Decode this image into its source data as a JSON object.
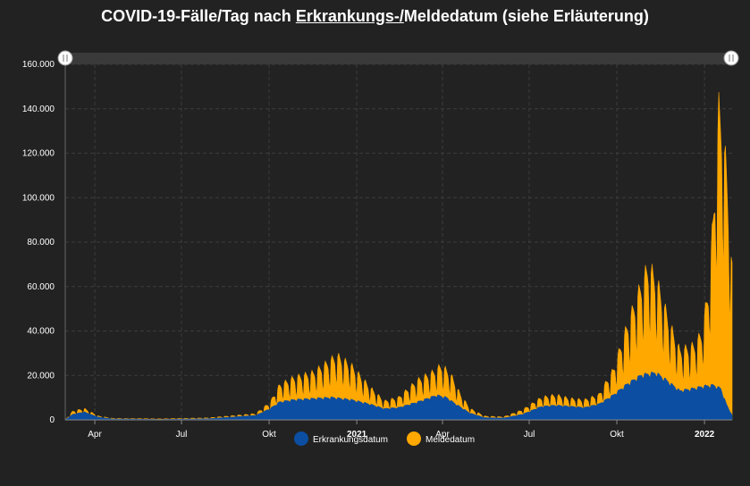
{
  "chart_data": {
    "type": "area",
    "title_parts": [
      "COVID-19-Fälle/Tag nach ",
      "Erkrankungs-/",
      "Meldedatum (siehe Erläuterung)"
    ],
    "ylim": [
      0,
      160000
    ],
    "y_ticks": [
      "0",
      "20.000",
      "40.000",
      "60.000",
      "80.000",
      "100.000",
      "120.000",
      "140.000",
      "160.000"
    ],
    "y_tick_values": [
      0,
      20000,
      40000,
      60000,
      80000,
      100000,
      120000,
      140000,
      160000
    ],
    "x_range_days": [
      0,
      700
    ],
    "x_ticks": [
      {
        "label": "Apr",
        "day": 31,
        "bold": false
      },
      {
        "label": "Jul",
        "day": 122,
        "bold": false
      },
      {
        "label": "Okt",
        "day": 214,
        "bold": false
      },
      {
        "label": "2021",
        "day": 306,
        "bold": true
      },
      {
        "label": "Apr",
        "day": 396,
        "bold": false
      },
      {
        "label": "Jul",
        "day": 487,
        "bold": false
      },
      {
        "label": "Okt",
        "day": 579,
        "bold": false
      },
      {
        "label": "2022",
        "day": 671,
        "bold": true
      }
    ],
    "series": [
      {
        "name": "Erkrankungsdatum",
        "color": "#0b4ea2",
        "keypoints": [
          [
            0,
            0
          ],
          [
            8,
            2500
          ],
          [
            20,
            3500
          ],
          [
            35,
            1200
          ],
          [
            50,
            400
          ],
          [
            100,
            200
          ],
          [
            150,
            500
          ],
          [
            200,
            2000
          ],
          [
            215,
            5000
          ],
          [
            225,
            8000
          ],
          [
            240,
            9000
          ],
          [
            260,
            9500
          ],
          [
            280,
            10000
          ],
          [
            300,
            9000
          ],
          [
            320,
            7000
          ],
          [
            335,
            5000
          ],
          [
            350,
            5500
          ],
          [
            370,
            8000
          ],
          [
            390,
            11000
          ],
          [
            400,
            10000
          ],
          [
            410,
            7000
          ],
          [
            425,
            3000
          ],
          [
            440,
            1000
          ],
          [
            460,
            800
          ],
          [
            480,
            2500
          ],
          [
            500,
            6000
          ],
          [
            515,
            6500
          ],
          [
            530,
            6000
          ],
          [
            545,
            5500
          ],
          [
            560,
            7000
          ],
          [
            575,
            11000
          ],
          [
            590,
            16000
          ],
          [
            605,
            20000
          ],
          [
            620,
            21000
          ],
          [
            630,
            18000
          ],
          [
            645,
            13000
          ],
          [
            660,
            14000
          ],
          [
            670,
            15000
          ],
          [
            680,
            15500
          ],
          [
            688,
            14000
          ],
          [
            694,
            7000
          ],
          [
            700,
            2000
          ]
        ]
      },
      {
        "name": "Meldedatum",
        "color": "#ffa800",
        "keypoints": [
          [
            0,
            0
          ],
          [
            8,
            3500
          ],
          [
            20,
            4500
          ],
          [
            35,
            1500
          ],
          [
            50,
            600
          ],
          [
            100,
            400
          ],
          [
            150,
            800
          ],
          [
            200,
            2500
          ],
          [
            215,
            7000
          ],
          [
            225,
            14000
          ],
          [
            240,
            17000
          ],
          [
            260,
            19000
          ],
          [
            275,
            23000
          ],
          [
            285,
            26000
          ],
          [
            300,
            22000
          ],
          [
            320,
            13000
          ],
          [
            335,
            7500
          ],
          [
            350,
            9000
          ],
          [
            370,
            16000
          ],
          [
            385,
            19000
          ],
          [
            395,
            22000
          ],
          [
            405,
            18000
          ],
          [
            415,
            10000
          ],
          [
            425,
            4500
          ],
          [
            440,
            1500
          ],
          [
            460,
            1200
          ],
          [
            480,
            4000
          ],
          [
            500,
            9000
          ],
          [
            515,
            10000
          ],
          [
            530,
            8500
          ],
          [
            545,
            8000
          ],
          [
            560,
            10000
          ],
          [
            575,
            20000
          ],
          [
            590,
            38000
          ],
          [
            605,
            55000
          ],
          [
            612,
            62000
          ],
          [
            620,
            57000
          ],
          [
            635,
            38000
          ],
          [
            645,
            28000
          ],
          [
            660,
            30000
          ],
          [
            668,
            35000
          ],
          [
            675,
            52000
          ],
          [
            680,
            80000
          ],
          [
            686,
            125000
          ],
          [
            690,
            118000
          ],
          [
            694,
            100000
          ],
          [
            700,
            60000
          ]
        ]
      }
    ],
    "legend": [
      "Erkrankungsdatum",
      "Meldedatum"
    ]
  }
}
